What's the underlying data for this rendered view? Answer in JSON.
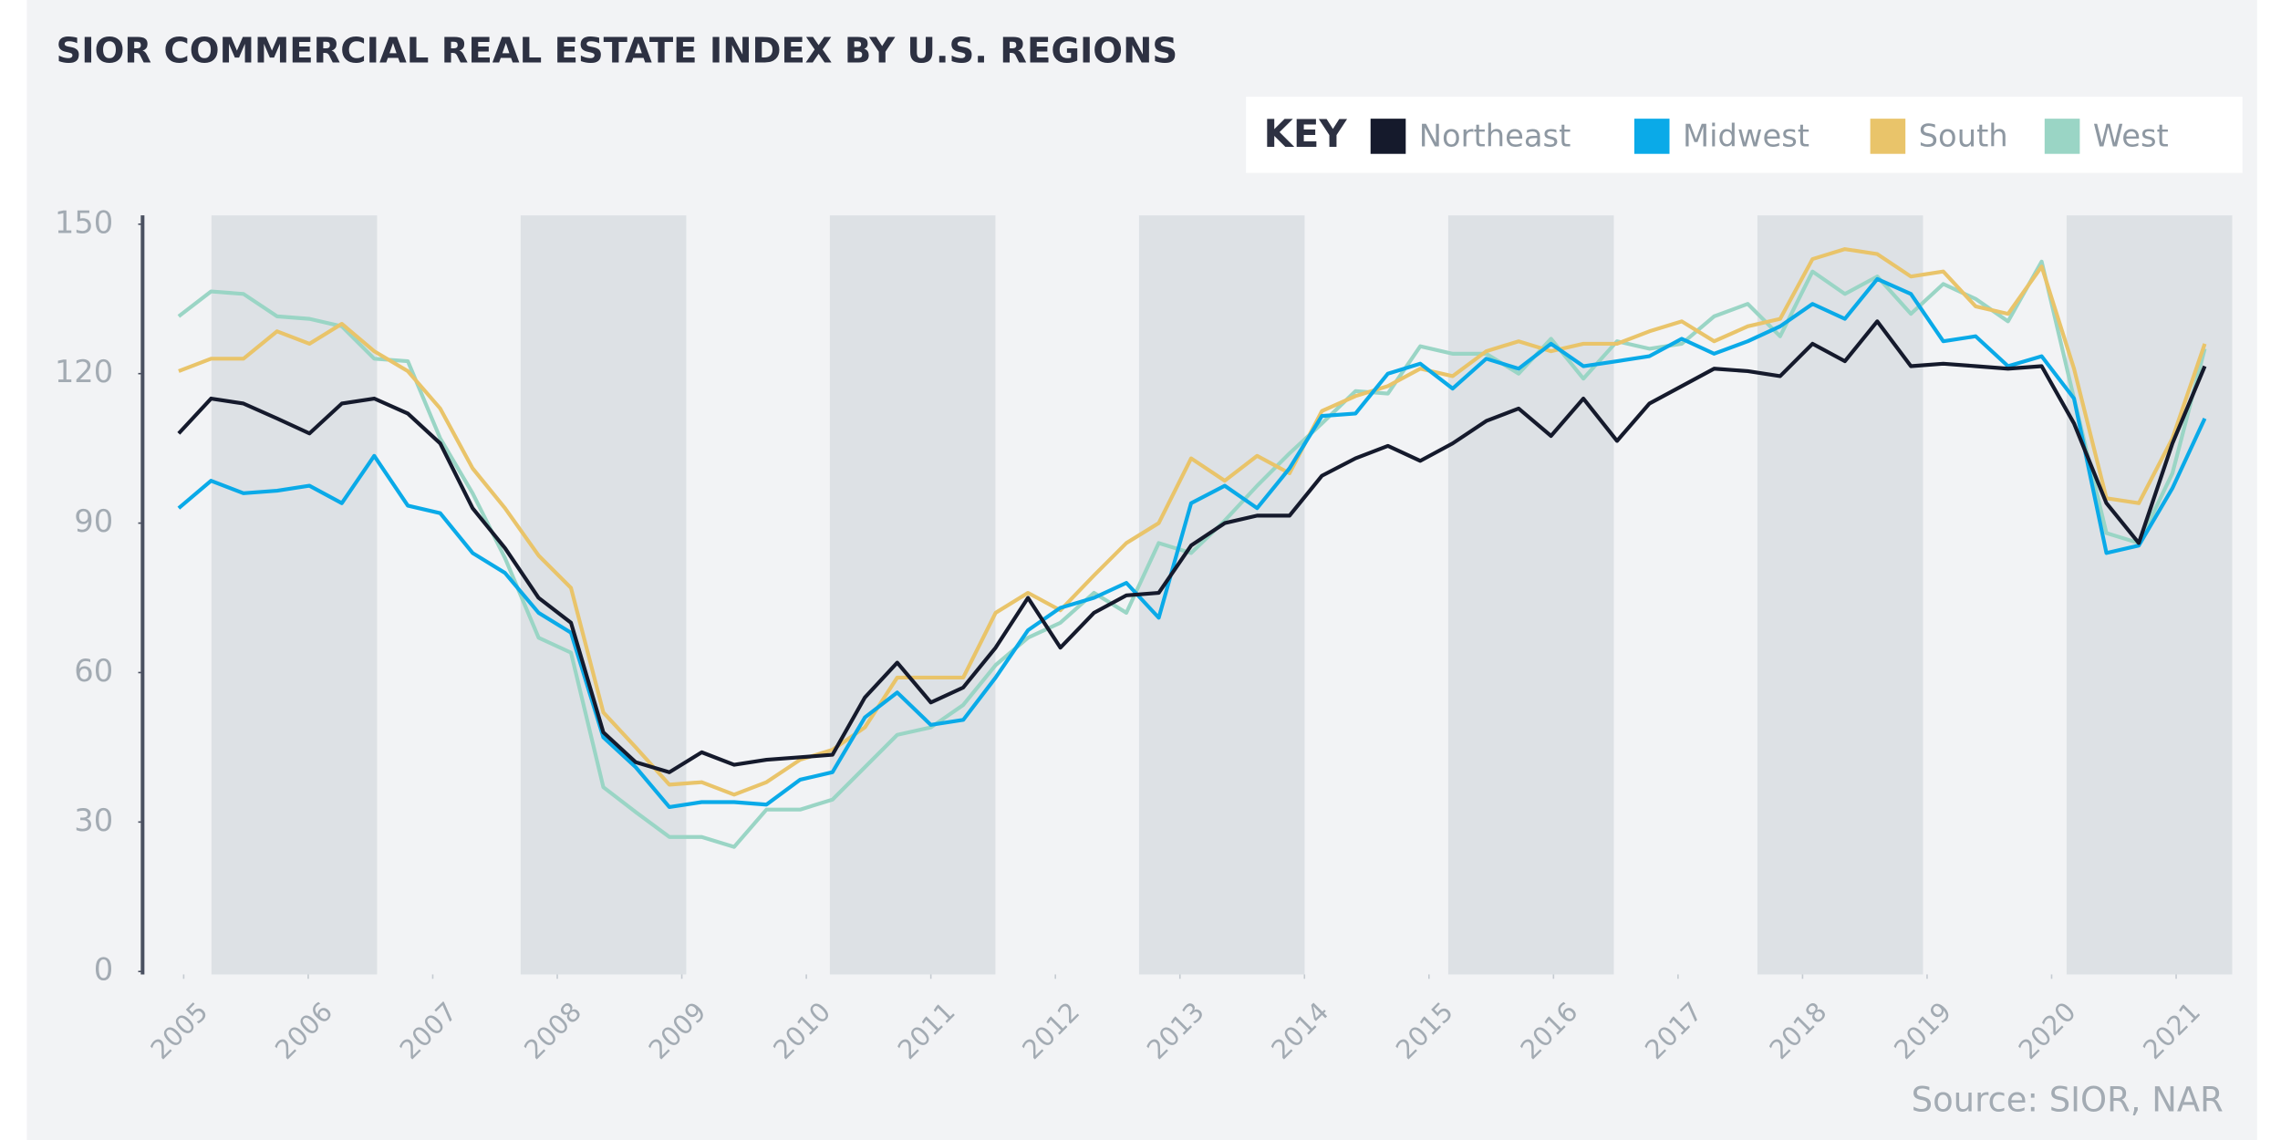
{
  "chart_data": {
    "type": "line",
    "title": "SIOR COMMERCIAL REAL ESTATE INDEX BY U.S. REGIONS",
    "legend_title": "KEY",
    "source": "Source: SIOR, NAR",
    "x": [
      2004.96,
      2005.22,
      2005.48,
      2005.75,
      2006.01,
      2006.27,
      2006.53,
      2006.8,
      2007.06,
      2007.32,
      2007.58,
      2007.85,
      2008.11,
      2008.37,
      2008.63,
      2008.9,
      2009.16,
      2009.42,
      2009.68,
      2009.95,
      2010.21,
      2010.47,
      2010.73,
      2011.0,
      2011.26,
      2011.52,
      2011.78,
      2012.04,
      2012.31,
      2012.57,
      2012.83,
      2013.09,
      2013.36,
      2013.62,
      2013.88,
      2014.14,
      2014.41,
      2014.67,
      2014.93,
      2015.19,
      2015.46,
      2015.72,
      2015.98,
      2016.24,
      2016.51,
      2016.77,
      2017.03,
      2017.29,
      2017.56,
      2017.82,
      2018.08,
      2018.34,
      2018.6,
      2018.87,
      2019.13,
      2019.39,
      2019.65,
      2019.92,
      2020.18,
      2020.44,
      2020.7,
      2020.97,
      2021.23
    ],
    "xlim": [
      2004.67,
      2021.45
    ],
    "xticks": [
      2005,
      2006,
      2007,
      2008,
      2009,
      2010,
      2011,
      2012,
      2013,
      2014,
      2015,
      2016,
      2017,
      2018,
      2019,
      2020,
      2021
    ],
    "ylim": [
      0,
      150
    ],
    "yticks": [
      0,
      30,
      60,
      90,
      120,
      150
    ],
    "series": [
      {
        "name": "Northeast",
        "color": "#151a2c",
        "values": [
          108,
          115,
          114,
          111,
          108,
          114,
          115,
          112,
          106,
          93,
          85,
          75,
          70,
          48,
          42,
          40,
          44,
          41.5,
          42.5,
          43,
          43.5,
          55,
          62,
          54,
          57,
          65,
          75,
          65,
          72,
          75.5,
          76,
          85.5,
          90,
          91.5,
          91.5,
          99.5,
          103,
          105.5,
          102.5,
          106,
          110.5,
          113,
          107.5,
          115,
          106.5,
          114,
          117.5,
          121,
          120.5,
          119.5,
          126,
          122.5,
          130.5,
          121.5,
          122,
          121.5,
          121,
          121.5,
          110,
          94,
          86,
          106,
          121.5
        ]
      },
      {
        "name": "Midwest",
        "color": "#0aaae8",
        "values": [
          93,
          98.5,
          96,
          96.5,
          97.5,
          94,
          103.5,
          93.5,
          92,
          84,
          80,
          72,
          68,
          47,
          41,
          33,
          34,
          34,
          33.5,
          38.5,
          40,
          51,
          56,
          49.5,
          50.5,
          59,
          68.5,
          73,
          75,
          78,
          71,
          94,
          97.5,
          93,
          101,
          111.5,
          112,
          120,
          122,
          117,
          123,
          121,
          126,
          121.5,
          122.5,
          123.5,
          127,
          124,
          126.5,
          129.5,
          134,
          131,
          139,
          136,
          126.5,
          127.5,
          121.5,
          123.5,
          115,
          84,
          85.5,
          97,
          111
        ]
      },
      {
        "name": "South",
        "color": "#e9c46a",
        "values": [
          120.5,
          123,
          123,
          128.5,
          126,
          130,
          124.5,
          120.5,
          113,
          101,
          93,
          83.5,
          77,
          52,
          45,
          37.5,
          38,
          35.5,
          38,
          42.5,
          44.5,
          49,
          59,
          59,
          59,
          72,
          76,
          72.5,
          79.5,
          86,
          90,
          103,
          98.5,
          103.5,
          100,
          112.5,
          115.5,
          117.5,
          121,
          119.5,
          124.5,
          126.5,
          124.5,
          126,
          126,
          128.5,
          130.5,
          126.5,
          129.5,
          131,
          143,
          145,
          144,
          139.5,
          140.5,
          133.5,
          132,
          141.5,
          121,
          95,
          94,
          107,
          126
        ]
      },
      {
        "name": "West",
        "color": "#9ad5c5",
        "values": [
          131.5,
          136.5,
          136,
          131.5,
          131,
          129.5,
          123,
          122.5,
          107,
          96,
          83,
          67,
          64,
          37,
          32,
          27,
          27,
          25,
          32.5,
          32.5,
          34.5,
          41,
          47.5,
          49,
          53.5,
          61.5,
          67,
          70,
          76,
          72,
          86,
          84,
          90.5,
          97.5,
          104,
          110,
          116.5,
          116,
          125.5,
          124,
          124,
          120,
          127,
          119,
          126.5,
          125,
          126,
          131.5,
          134,
          127.5,
          140.5,
          136,
          139.5,
          132,
          138,
          135,
          130.5,
          142.5,
          115,
          88,
          86,
          100,
          125
        ]
      }
    ]
  }
}
